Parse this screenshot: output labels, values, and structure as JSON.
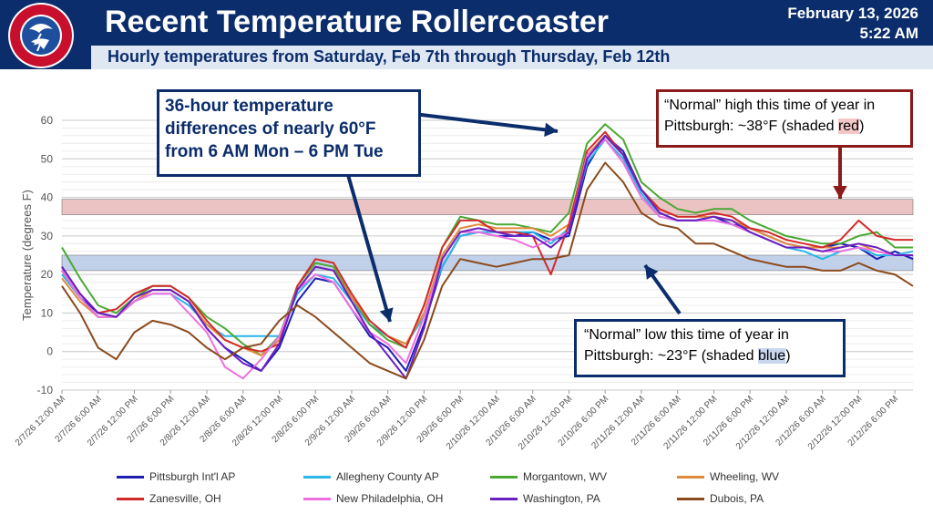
{
  "header": {
    "title": "Recent Temperature Rollercoaster",
    "subtitle": "Hourly temperatures from Saturday, Feb 7th through Thursday, Feb 12th",
    "date_line1": "February 13, 2026",
    "date_line2": "5:22 AM",
    "logo_text": "NATIONAL WEATHER SERVICE"
  },
  "callouts": {
    "top": "36-hour temperature differences of nearly 60°F from 6 AM Mon – 6 PM Tue",
    "normal_high_prefix": "“Normal” high this time of year in Pittsburgh: ~38°F (shaded ",
    "normal_high_word": "red",
    "normal_high_suffix": ")",
    "normal_low_prefix": "“Normal” low this time of year in Pittsburgh: ~23°F (shaded ",
    "normal_low_word": "blue",
    "normal_low_suffix": ")"
  },
  "chart_data": {
    "type": "line",
    "title": "Recent Temperature Rollercoaster",
    "xlabel": "",
    "ylabel": "Temperature (degrees F)",
    "ylim": [
      -10,
      60
    ],
    "yticks": [
      -10,
      0,
      10,
      20,
      30,
      40,
      50,
      60
    ],
    "grid": true,
    "x_hours_range": [
      0,
      141
    ],
    "xtick_labels": [
      "2/7/26 12:00 AM",
      "2/7/26 6:00 AM",
      "2/7/26 12:00 PM",
      "2/7/26 6:00 PM",
      "2/8/26 12:00 AM",
      "2/8/26 6:00 AM",
      "2/8/26 12:00 PM",
      "2/8/26 6:00 PM",
      "2/9/26 12:00 AM",
      "2/9/26 6:00 AM",
      "2/9/26 12:00 PM",
      "2/9/26 6:00 PM",
      "2/10/26 12:00 AM",
      "2/10/26 6:00 AM",
      "2/10/26 12:00 PM",
      "2/10/26 6:00 PM",
      "2/11/26 12:00 AM",
      "2/11/26 6:00 AM",
      "2/11/26 12:00 PM",
      "2/11/26 6:00 PM",
      "2/12/26 12:00 AM",
      "2/12/26 6:00 AM",
      "2/12/26 12:00 PM",
      "2/12/26 6:00 PM"
    ],
    "bands": [
      {
        "name": "normal-high",
        "from": 35.5,
        "to": 39.5,
        "color": "#e9b8b8"
      },
      {
        "name": "normal-low",
        "from": 21,
        "to": 25,
        "color": "#b7c9e6"
      }
    ],
    "series": [
      {
        "name": "Pittsburgh Int'l AP",
        "color": "#1f1fb4",
        "hours": [
          0,
          3,
          6,
          9,
          12,
          15,
          18,
          21,
          24,
          27,
          30,
          33,
          36,
          39,
          42,
          45,
          48,
          51,
          54,
          57,
          60,
          63,
          66,
          69,
          72,
          75,
          78,
          81,
          84,
          87,
          90,
          93,
          96,
          99,
          102,
          105,
          108,
          111,
          114,
          117,
          120,
          123,
          126,
          129,
          132,
          135,
          138,
          141
        ],
        "values": [
          21,
          14,
          10,
          9,
          13,
          16,
          16,
          13,
          6,
          1,
          -2,
          -5,
          1,
          13,
          19,
          18,
          11,
          4,
          1,
          -5,
          7,
          22,
          30,
          31,
          30,
          30,
          31,
          29,
          30,
          48,
          56,
          52,
          42,
          36,
          34,
          34,
          35,
          33,
          32,
          30,
          28,
          27,
          27,
          28,
          27,
          24,
          26,
          24
        ]
      },
      {
        "name": "Allegheny County AP",
        "color": "#29b6e8",
        "hours": [
          0,
          3,
          6,
          9,
          12,
          15,
          18,
          21,
          24,
          27,
          30,
          33,
          36,
          39,
          42,
          45,
          48,
          51,
          54,
          57,
          60,
          63,
          66,
          69,
          72,
          75,
          78,
          81,
          84,
          87,
          90,
          93,
          96,
          99,
          102,
          105,
          108,
          111,
          114,
          117,
          120,
          123,
          126,
          129,
          132,
          135,
          138,
          141
        ],
        "values": [
          20,
          14,
          9,
          9,
          13,
          15,
          15,
          12,
          7,
          4,
          4,
          4,
          4,
          15,
          20,
          19,
          13,
          7,
          4,
          2,
          9,
          22,
          30,
          31,
          31,
          31,
          31,
          28,
          32,
          49,
          55,
          50,
          41,
          35,
          34,
          34,
          34,
          33,
          31,
          29,
          27,
          26,
          24,
          26,
          27,
          25,
          25,
          26
        ]
      },
      {
        "name": "Morgantown, WV",
        "color": "#4aa832",
        "hours": [
          0,
          3,
          6,
          9,
          12,
          15,
          18,
          21,
          24,
          27,
          30,
          33,
          36,
          39,
          42,
          45,
          48,
          51,
          54,
          57,
          60,
          63,
          66,
          69,
          72,
          75,
          78,
          81,
          84,
          87,
          90,
          93,
          96,
          99,
          102,
          105,
          108,
          111,
          114,
          117,
          120,
          123,
          126,
          129,
          132,
          135,
          138,
          141
        ],
        "values": [
          27,
          19,
          12,
          10,
          14,
          17,
          17,
          14,
          9,
          6,
          2,
          -1,
          4,
          17,
          23,
          22,
          14,
          7,
          3,
          1,
          12,
          27,
          35,
          34,
          33,
          33,
          32,
          31,
          36,
          54,
          59,
          55,
          44,
          40,
          37,
          36,
          37,
          37,
          34,
          32,
          30,
          29,
          28,
          28,
          30,
          31,
          27,
          27
        ]
      },
      {
        "name": "Wheeling, WV",
        "color": "#e08a3c",
        "hours": [
          0,
          3,
          6,
          9,
          12,
          15,
          18,
          21,
          24,
          27,
          30,
          33,
          36,
          39,
          42,
          45,
          48,
          51,
          54,
          57,
          60,
          63,
          66,
          69,
          72,
          75,
          78,
          81,
          84,
          87,
          90,
          93,
          96,
          99,
          102,
          105,
          108,
          111,
          114,
          117,
          120,
          123,
          126,
          129,
          132,
          135,
          138,
          141
        ],
        "values": [
          19,
          13,
          9,
          9,
          13,
          16,
          16,
          13,
          7,
          3,
          1,
          -1,
          3,
          16,
          22,
          21,
          14,
          8,
          4,
          2,
          10,
          25,
          32,
          33,
          32,
          32,
          32,
          30,
          33,
          51,
          56,
          51,
          42,
          37,
          35,
          35,
          35,
          34,
          32,
          30,
          28,
          27,
          27,
          27,
          28,
          26,
          25,
          25
        ]
      },
      {
        "name": "Zanesville, OH",
        "color": "#d42a2a",
        "hours": [
          0,
          3,
          6,
          9,
          12,
          15,
          18,
          21,
          24,
          27,
          30,
          33,
          36,
          39,
          42,
          45,
          48,
          51,
          54,
          57,
          60,
          63,
          66,
          69,
          72,
          75,
          78,
          81,
          84,
          87,
          90,
          93,
          96,
          99,
          102,
          105,
          108,
          111,
          114,
          117,
          120,
          123,
          126,
          129,
          132,
          135,
          138,
          141
        ],
        "values": [
          22,
          15,
          10,
          11,
          15,
          17,
          17,
          14,
          8,
          3,
          1,
          0,
          2,
          17,
          24,
          23,
          15,
          8,
          4,
          1,
          12,
          27,
          34,
          34,
          31,
          31,
          30,
          20,
          33,
          52,
          57,
          51,
          42,
          37,
          35,
          35,
          36,
          35,
          32,
          31,
          29,
          28,
          27,
          29,
          34,
          30,
          29,
          29
        ]
      },
      {
        "name": "New Philadelphia, OH",
        "color": "#f06fe0",
        "hours": [
          0,
          3,
          6,
          9,
          12,
          15,
          18,
          21,
          24,
          27,
          30,
          33,
          36,
          39,
          42,
          45,
          48,
          51,
          54,
          57,
          60,
          63,
          66,
          69,
          72,
          75,
          78,
          81,
          84,
          87,
          90,
          93,
          96,
          99,
          102,
          105,
          108,
          111,
          114,
          117,
          120,
          123,
          126,
          129,
          132,
          135,
          138,
          141
        ],
        "values": [
          21,
          14,
          9,
          9,
          13,
          15,
          15,
          10,
          5,
          -4,
          -7,
          -2,
          4,
          16,
          20,
          18,
          11,
          5,
          2,
          -3,
          9,
          24,
          31,
          31,
          30,
          29,
          27,
          29,
          31,
          51,
          55,
          49,
          40,
          35,
          34,
          34,
          34,
          33,
          31,
          29,
          27,
          27,
          26,
          26,
          27,
          26,
          25,
          25
        ]
      },
      {
        "name": "Washington, PA",
        "color": "#6a1fc0",
        "hours": [
          0,
          3,
          6,
          9,
          12,
          15,
          18,
          21,
          24,
          27,
          30,
          33,
          36,
          39,
          42,
          45,
          48,
          51,
          54,
          57,
          60,
          63,
          66,
          69,
          72,
          75,
          78,
          81,
          84,
          87,
          90,
          93,
          96,
          99,
          102,
          105,
          108,
          111,
          114,
          117,
          120,
          123,
          126,
          129,
          132,
          135,
          138,
          141
        ],
        "values": [
          22,
          15,
          10,
          9,
          14,
          16,
          16,
          13,
          6,
          1,
          -3,
          -5,
          2,
          16,
          22,
          21,
          13,
          5,
          -1,
          -7,
          6,
          24,
          31,
          32,
          31,
          30,
          30,
          27,
          31,
          50,
          56,
          51,
          42,
          36,
          34,
          34,
          35,
          34,
          31,
          29,
          27,
          27,
          26,
          27,
          28,
          27,
          25,
          25
        ]
      },
      {
        "name": "Dubois, PA",
        "color": "#8b4a1c",
        "hours": [
          0,
          3,
          6,
          9,
          12,
          15,
          18,
          21,
          24,
          27,
          30,
          33,
          36,
          39,
          42,
          45,
          48,
          51,
          54,
          57,
          60,
          63,
          66,
          69,
          72,
          75,
          78,
          81,
          84,
          87,
          90,
          93,
          96,
          99,
          102,
          105,
          108,
          111,
          114,
          117,
          120,
          123,
          126,
          129,
          132,
          135,
          138,
          141
        ],
        "values": [
          17,
          10,
          1,
          -2,
          5,
          8,
          7,
          5,
          1,
          -2,
          1,
          2,
          8,
          12,
          9,
          5,
          1,
          -3,
          -5,
          -7,
          3,
          17,
          24,
          23,
          22,
          23,
          24,
          24,
          25,
          42,
          49,
          44,
          36,
          33,
          32,
          28,
          28,
          26,
          24,
          23,
          22,
          22,
          21,
          21,
          23,
          21,
          20,
          17
        ]
      }
    ]
  }
}
